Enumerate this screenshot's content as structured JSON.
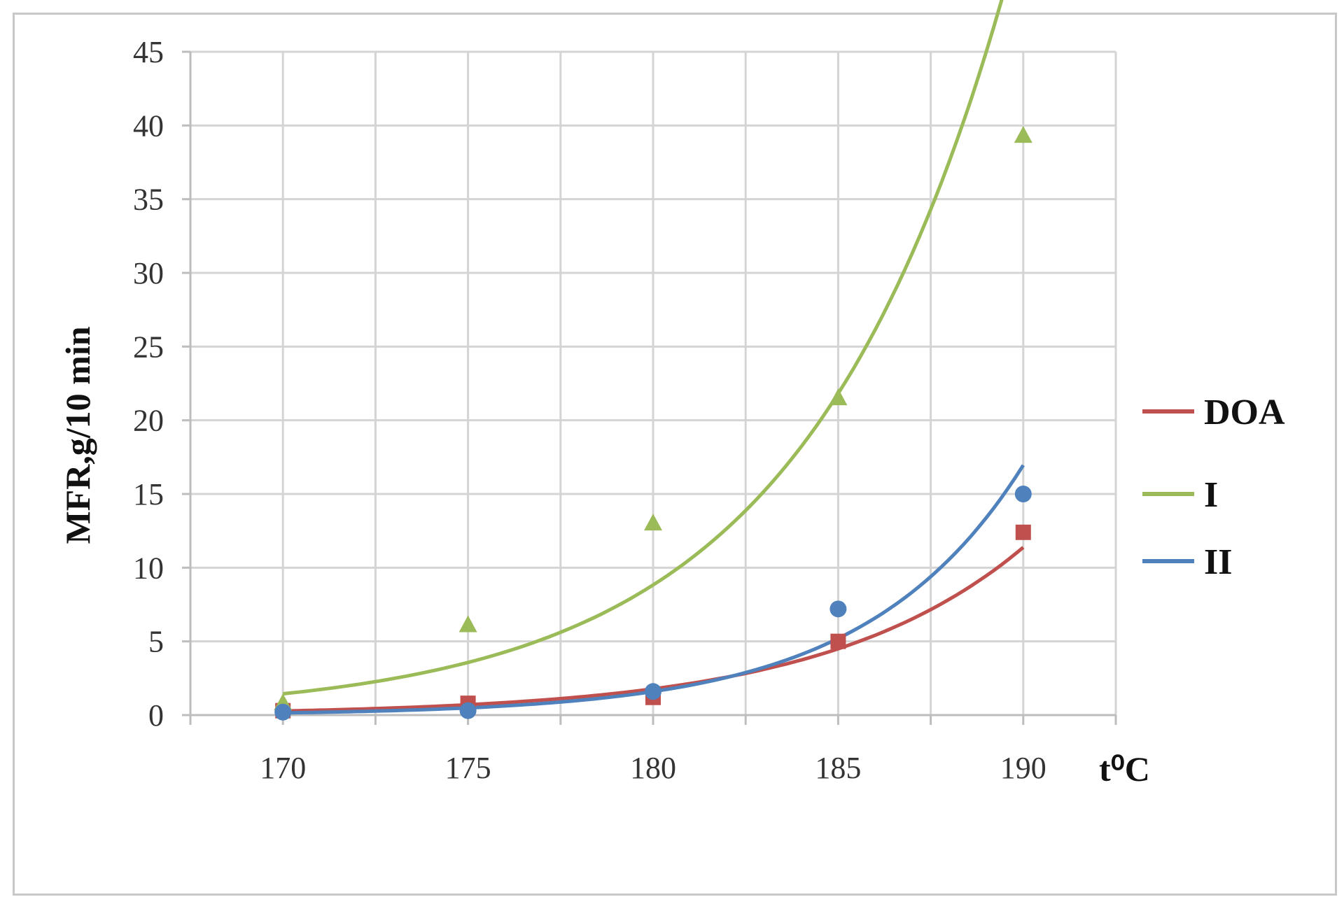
{
  "chart_data": {
    "type": "scatter",
    "title": "",
    "xlabel": "t⁰C",
    "ylabel": "MFR,g/10 min",
    "x": [
      170,
      175,
      180,
      185,
      190
    ],
    "xticks": [
      "170",
      "175",
      "180",
      "185",
      "190"
    ],
    "yticks": [
      "0",
      "5",
      "10",
      "15",
      "20",
      "25",
      "30",
      "35",
      "40",
      "45"
    ],
    "xlim": [
      167.5,
      192.5
    ],
    "ylim": [
      0,
      45
    ],
    "grid": true,
    "legend_position": "right",
    "trendline": "exponential",
    "series": [
      {
        "name": "DOA",
        "marker": "square",
        "color": "#c0504d",
        "values": [
          0.3,
          0.8,
          1.2,
          5.0,
          12.4
        ]
      },
      {
        "name": "I",
        "marker": "triangle",
        "color": "#9bbb59",
        "values": [
          0.8,
          6.1,
          13.0,
          21.5,
          39.3
        ]
      },
      {
        "name": "II",
        "marker": "circle",
        "color": "#4f81bd",
        "values": [
          0.2,
          0.3,
          1.6,
          7.2,
          15.0
        ]
      }
    ]
  }
}
